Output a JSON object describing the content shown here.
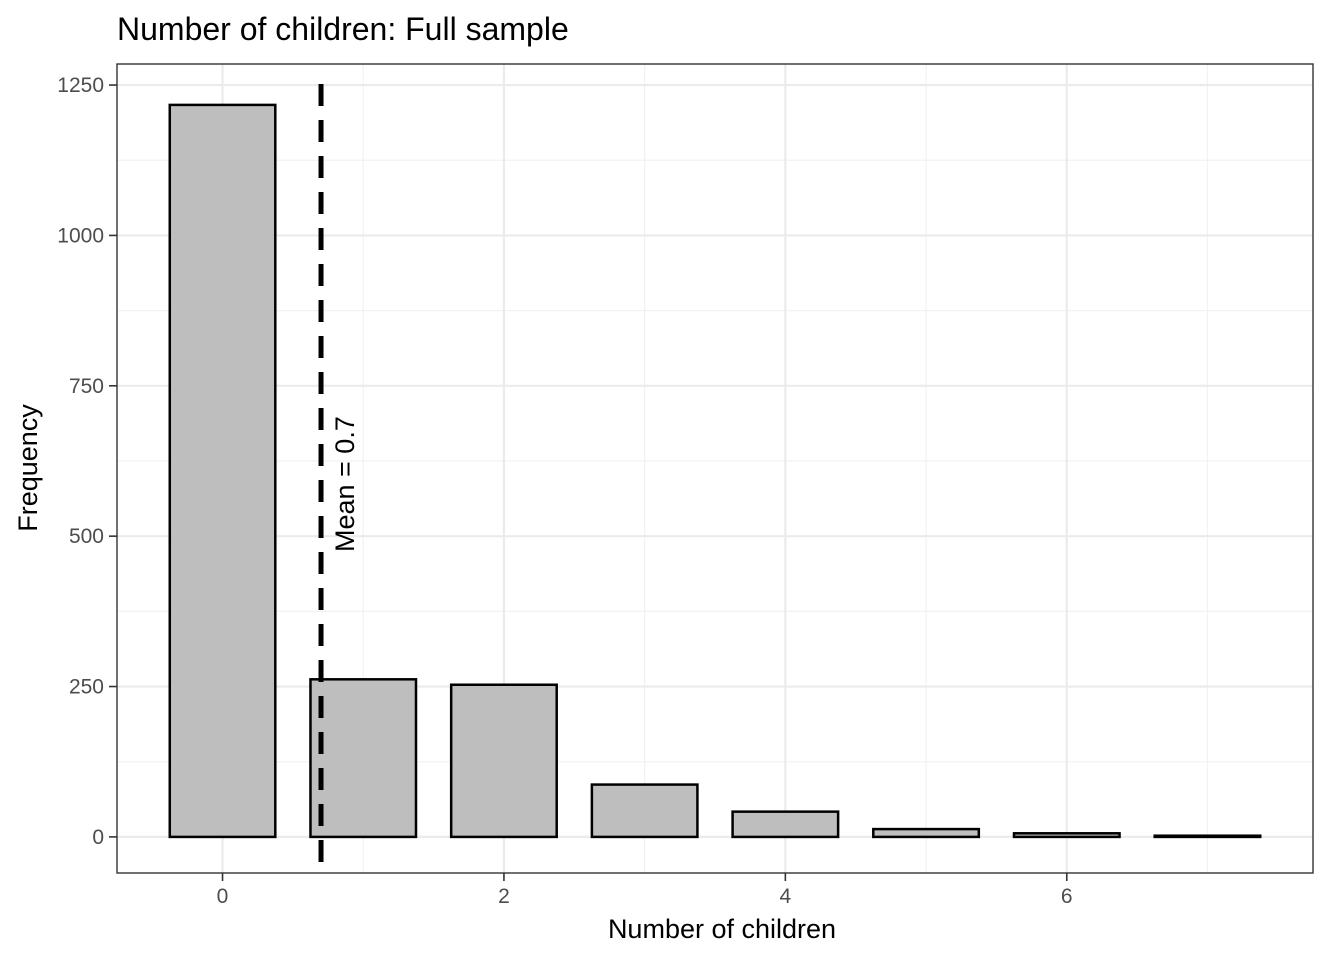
{
  "chart_data": {
    "type": "bar",
    "title": "Number of children: Full sample",
    "xlabel": "Number of children",
    "ylabel": "Frequency",
    "categories": [
      0,
      1,
      2,
      3,
      4,
      5,
      6,
      7
    ],
    "values": [
      1217,
      262,
      253,
      87,
      42,
      13,
      6,
      2
    ],
    "xlim": [
      -0.75,
      7.75
    ],
    "ylim": [
      -60,
      1285
    ],
    "x_ticks": [
      0,
      2,
      4,
      6
    ],
    "x_tick_labels": [
      "0",
      "2",
      "4",
      "6"
    ],
    "y_ticks": [
      0,
      250,
      500,
      750,
      1000,
      1250
    ],
    "y_tick_labels": [
      "0",
      "250",
      "500",
      "750",
      "1000",
      "1250"
    ],
    "bar_fill": "#bebebe",
    "bar_stroke": "#000000",
    "grid": true,
    "mean_line": {
      "x": 0.7,
      "label": "Mean = 0.7",
      "style": "dashed",
      "color": "#000000"
    }
  }
}
